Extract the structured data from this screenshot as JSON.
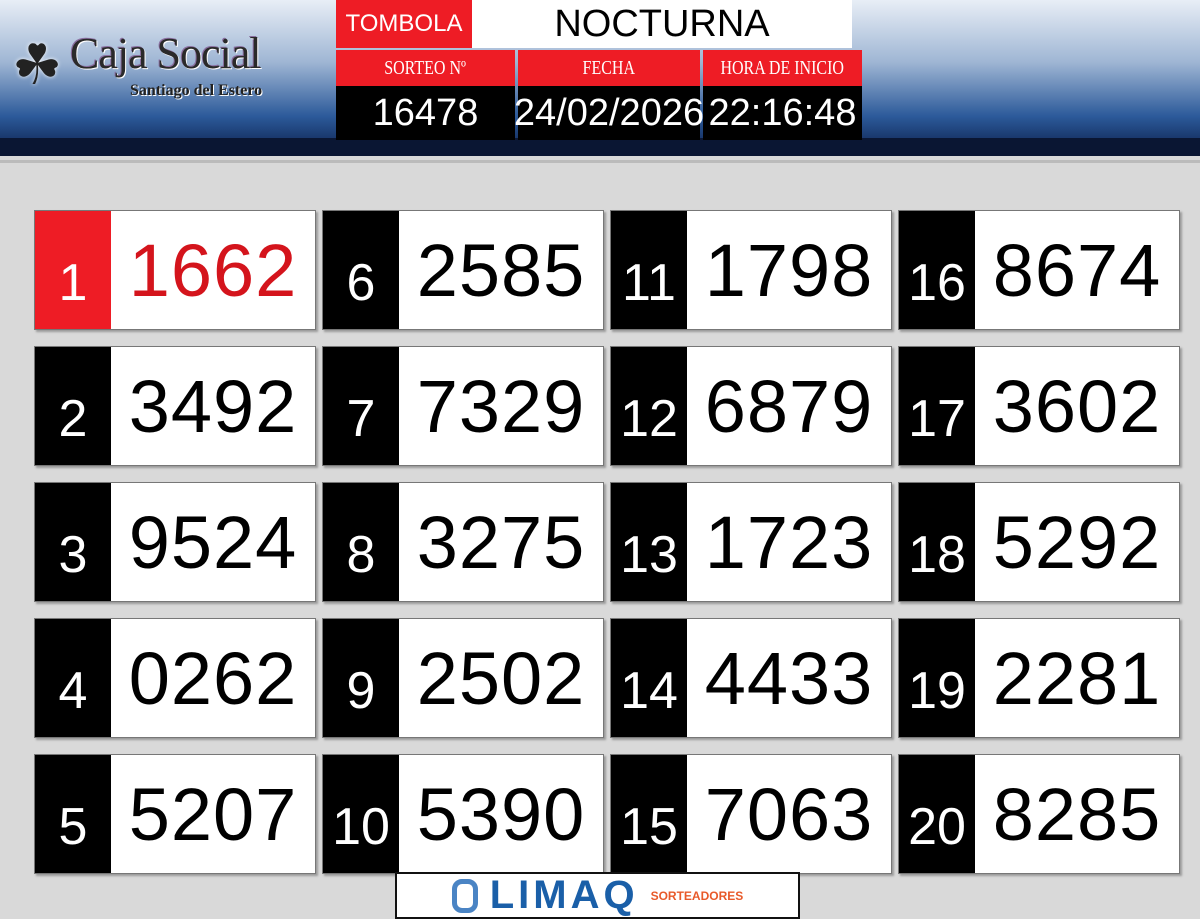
{
  "logo": {
    "name": "Caja Social",
    "subtitle": "Santiago del Estero",
    "icon": "clover-icon"
  },
  "header": {
    "game_label": "TOMBOLA",
    "game_name": "NOCTURNA",
    "fields": [
      {
        "label": "SORTEO  Nº",
        "value": "16478"
      },
      {
        "label": "FECHA",
        "value": "24/02/2026"
      },
      {
        "label": "HORA DE INICIO",
        "value": "22:16:48"
      }
    ]
  },
  "results": [
    {
      "pos": "1",
      "num": "1662"
    },
    {
      "pos": "2",
      "num": "3492"
    },
    {
      "pos": "3",
      "num": "9524"
    },
    {
      "pos": "4",
      "num": "0262"
    },
    {
      "pos": "5",
      "num": "5207"
    },
    {
      "pos": "6",
      "num": "2585"
    },
    {
      "pos": "7",
      "num": "7329"
    },
    {
      "pos": "8",
      "num": "3275"
    },
    {
      "pos": "9",
      "num": "2502"
    },
    {
      "pos": "10",
      "num": "5390"
    },
    {
      "pos": "11",
      "num": "1798"
    },
    {
      "pos": "12",
      "num": "6879"
    },
    {
      "pos": "13",
      "num": "1723"
    },
    {
      "pos": "14",
      "num": "4433"
    },
    {
      "pos": "15",
      "num": "7063"
    },
    {
      "pos": "16",
      "num": "8674"
    },
    {
      "pos": "17",
      "num": "3602"
    },
    {
      "pos": "18",
      "num": "5292"
    },
    {
      "pos": "19",
      "num": "2281"
    },
    {
      "pos": "20",
      "num": "8285"
    }
  ],
  "colors": {
    "accent": "#ee1c25",
    "first_number": "#d4141c"
  },
  "footer": {
    "brand": "LIMAQ",
    "tagline": "SORTEADORES"
  }
}
